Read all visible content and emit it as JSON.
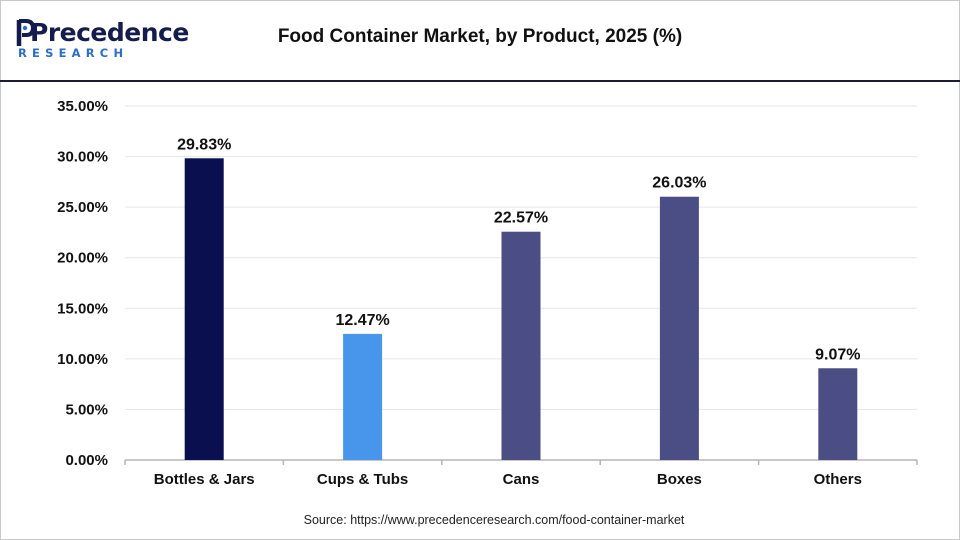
{
  "logo": {
    "name": "Precedence",
    "sub": "RESEARCH"
  },
  "title": "Food Container Market, by Product, 2025 (%)",
  "source": {
    "prefix": "Source: ",
    "url": "https://www.precedenceresearch.com/food-container-market"
  },
  "chart_data": {
    "type": "bar",
    "title": "Food Container Market, by Product, 2025 (%)",
    "xlabel": "",
    "ylabel": "",
    "categories": [
      "Bottles & Jars",
      "Cups & Tubs",
      "Cans",
      "Boxes",
      "Others"
    ],
    "values": [
      29.83,
      12.47,
      22.57,
      26.03,
      9.07
    ],
    "value_labels": [
      "29.83%",
      "12.47%",
      "22.57%",
      "26.03%",
      "9.07%"
    ],
    "bar_colors": [
      "#0a0f4f",
      "#4796ec",
      "#4a4e85",
      "#4a4e85",
      "#4a4e85"
    ],
    "ylim": [
      0,
      35
    ],
    "yticks": [
      0,
      5,
      10,
      15,
      20,
      25,
      30,
      35
    ],
    "ytick_labels": [
      "0.00%",
      "5.00%",
      "10.00%",
      "15.00%",
      "20.00%",
      "25.00%",
      "30.00%",
      "35.00%"
    ],
    "grid": true,
    "legend": "none"
  }
}
